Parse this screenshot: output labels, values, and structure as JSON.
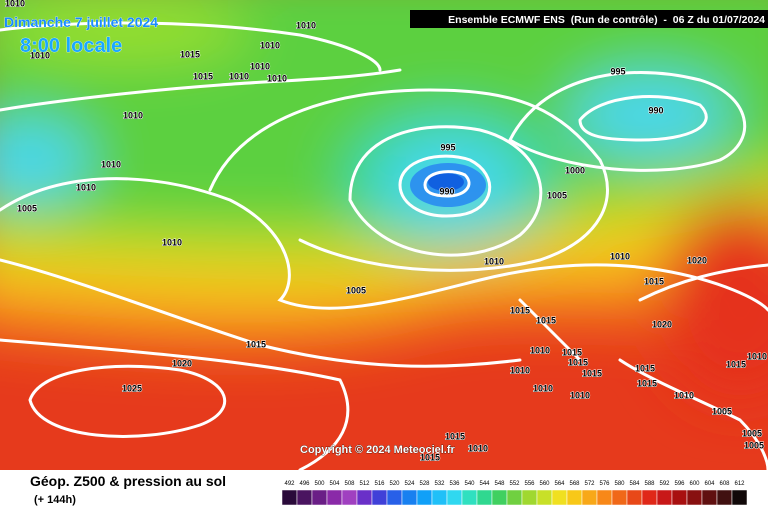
{
  "header": {
    "date": "Dimanche 7 juillet 2024",
    "time": "8:00 locale",
    "model": "Ensemble ECMWF ENS  (Run de contrôle)  -  06 Z du 01/07/2024"
  },
  "isobar_labels": [
    "1010",
    "1010",
    "1010",
    "1010",
    "1015",
    "1015",
    "1010",
    "1010",
    "1010",
    "995",
    "1010",
    "990",
    "995",
    "1010",
    "1000",
    "1010",
    "990",
    "1005",
    "1005",
    "1010",
    "1010",
    "1010",
    "1020",
    "1015",
    "1005",
    "1015",
    "1015",
    "1015",
    "1010",
    "1015",
    "1020",
    "1015",
    "1020",
    "1010",
    "1015",
    "1015",
    "1010",
    "1025",
    "1010",
    "1015",
    "1005",
    "1010",
    "1015",
    "1010",
    "1005",
    "1015",
    "1010",
    "1015",
    "1005"
  ],
  "copyright": "Copyright © 2024 Meteociel.fr",
  "footer": {
    "title": "Géop. Z500 & pression au sol",
    "subtitle": "(+ 144h)"
  },
  "legend": {
    "labels": [
      "492",
      "496",
      "500",
      "504",
      "508",
      "512",
      "516",
      "520",
      "524",
      "528",
      "532",
      "536",
      "540",
      "544",
      "548",
      "552",
      "556",
      "560",
      "564",
      "568",
      "572",
      "576",
      "580",
      "584",
      "588",
      "592",
      "596",
      "600",
      "604",
      "608",
      "612"
    ]
  }
}
